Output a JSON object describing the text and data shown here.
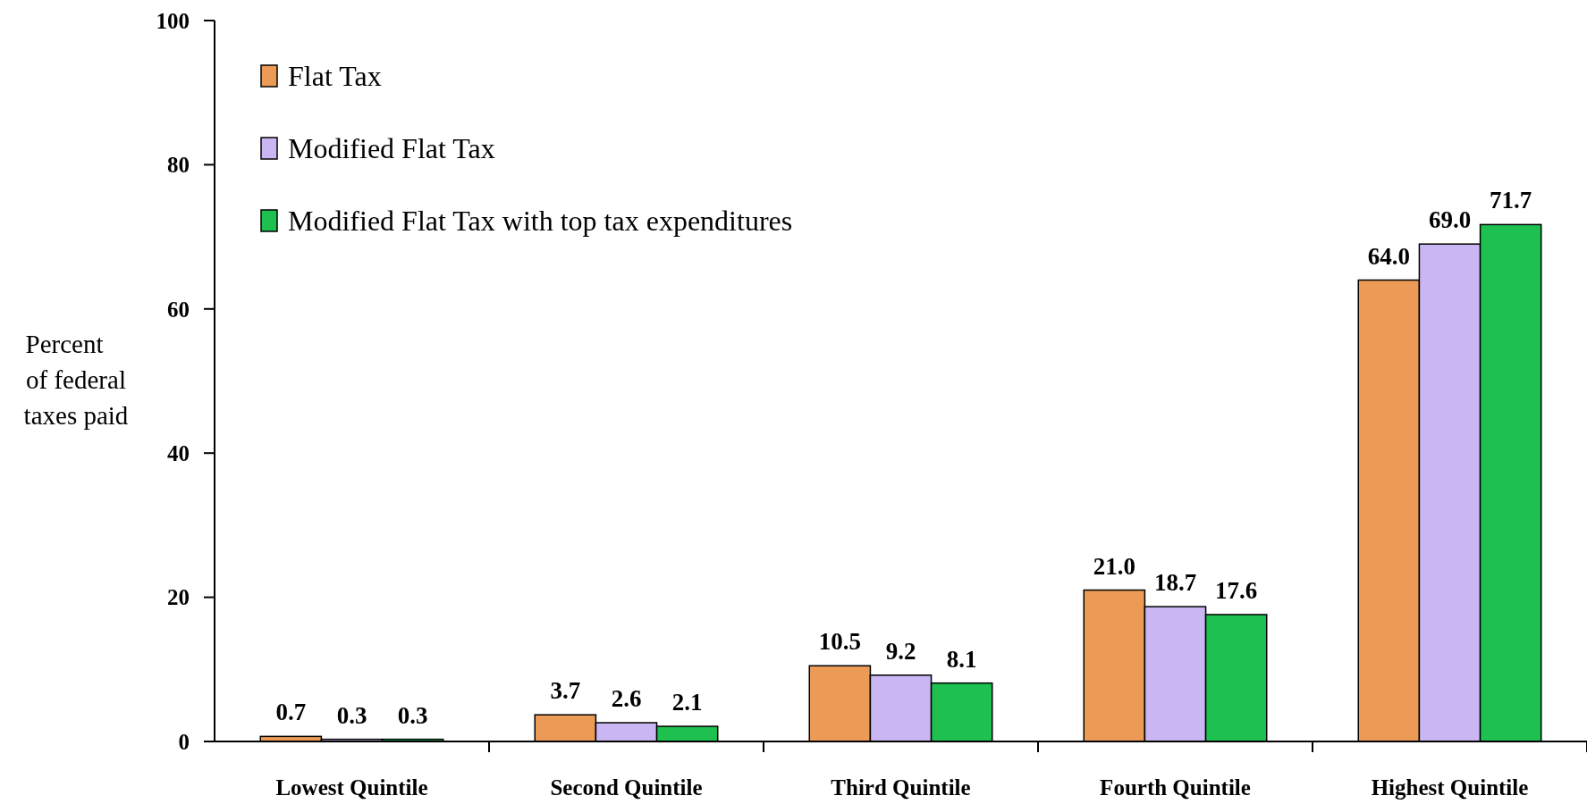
{
  "chart_data": {
    "type": "bar",
    "ylabel": "Percent\nof federal\ntaxes paid",
    "categories": [
      "Lowest Quintile",
      "Second Quintile",
      "Third Quintile",
      "Fourth Quintile",
      "Highest Quintile"
    ],
    "series": [
      {
        "name": "Flat Tax",
        "color": "#eb9b56",
        "values": [
          0.7,
          3.7,
          10.5,
          21.0,
          64.0
        ],
        "value_labels": [
          "0.7",
          "3.7",
          "10.5",
          "21.0",
          "64.0"
        ]
      },
      {
        "name": "Modified Flat Tax",
        "color": "#c9b6f2",
        "values": [
          0.3,
          2.6,
          9.2,
          18.7,
          69.0
        ],
        "value_labels": [
          "0.3",
          "2.6",
          "9.2",
          "18.7",
          "69.0"
        ]
      },
      {
        "name": "Modified Flat Tax with top tax expenditures",
        "color": "#1ec04f",
        "values": [
          0.3,
          2.1,
          8.1,
          17.6,
          71.7
        ],
        "value_labels": [
          "0.3",
          "2.1",
          "8.1",
          "17.6",
          "71.7"
        ]
      }
    ],
    "ylim": [
      0,
      100
    ],
    "yticks": [
      0,
      20,
      40,
      60,
      80,
      100
    ],
    "legend": "top left",
    "grid": false
  }
}
